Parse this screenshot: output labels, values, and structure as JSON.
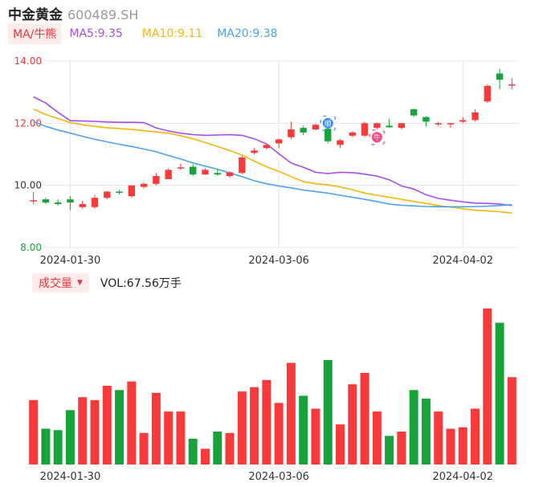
{
  "header": {
    "name": "中金黄金",
    "code": "600489.SH"
  },
  "ma_legend": {
    "type_label": "MA/牛熊",
    "items": [
      {
        "label": "MA5:9.35",
        "color": "#a64df2"
      },
      {
        "label": "MA10:9.11",
        "color": "#f5b50f"
      },
      {
        "label": "MA20:9.38",
        "color": "#4da3ef"
      }
    ]
  },
  "volume_legend": {
    "tab_label": "成交量",
    "caret": "▼",
    "value_text": "VOL:67.56万手"
  },
  "colors": {
    "up": "#f93a3a",
    "down": "#16a33a",
    "grid": "#e4e4e4",
    "axis_text": "#333333"
  },
  "markers": [
    {
      "label": "顺",
      "index": 24,
      "price": 12.0,
      "color": "#2f8cf5"
    },
    {
      "label": "牛",
      "index": 28,
      "price": 11.55,
      "color": "#f5487b"
    }
  ],
  "chart_data": [
    {
      "type": "candlestick",
      "y_ticks": [
        "14.00",
        "12.00",
        "10.00",
        "8.00"
      ],
      "ylim": [
        8.0,
        14.0
      ],
      "x_tick_labels": [
        {
          "label": "2024-01-30",
          "index": 3
        },
        {
          "label": "2024-03-06",
          "index": 20
        },
        {
          "label": "2024-04-02",
          "index": 35
        }
      ],
      "candles": [
        {
          "o": 9.5,
          "h": 9.78,
          "l": 9.4,
          "c": 9.52
        },
        {
          "o": 9.55,
          "h": 9.6,
          "l": 9.4,
          "c": 9.45
        },
        {
          "o": 9.45,
          "h": 9.55,
          "l": 9.35,
          "c": 9.4
        },
        {
          "o": 9.55,
          "h": 9.65,
          "l": 9.2,
          "c": 9.45
        },
        {
          "o": 9.3,
          "h": 9.5,
          "l": 9.25,
          "c": 9.4
        },
        {
          "o": 9.3,
          "h": 9.7,
          "l": 9.25,
          "c": 9.6
        },
        {
          "o": 9.6,
          "h": 9.82,
          "l": 9.55,
          "c": 9.8
        },
        {
          "o": 9.8,
          "h": 9.85,
          "l": 9.7,
          "c": 9.76
        },
        {
          "o": 9.65,
          "h": 10.0,
          "l": 9.6,
          "c": 10.0
        },
        {
          "o": 9.95,
          "h": 10.1,
          "l": 9.9,
          "c": 10.05
        },
        {
          "o": 10.05,
          "h": 10.4,
          "l": 10.0,
          "c": 10.3
        },
        {
          "o": 10.2,
          "h": 10.55,
          "l": 10.2,
          "c": 10.5
        },
        {
          "o": 10.55,
          "h": 10.7,
          "l": 10.5,
          "c": 10.58
        },
        {
          "o": 10.6,
          "h": 10.68,
          "l": 10.3,
          "c": 10.35
        },
        {
          "o": 10.35,
          "h": 10.55,
          "l": 10.35,
          "c": 10.5
        },
        {
          "o": 10.4,
          "h": 10.52,
          "l": 10.3,
          "c": 10.35
        },
        {
          "o": 10.3,
          "h": 10.45,
          "l": 10.25,
          "c": 10.42
        },
        {
          "o": 10.4,
          "h": 10.95,
          "l": 10.35,
          "c": 10.9
        },
        {
          "o": 11.05,
          "h": 11.2,
          "l": 11.0,
          "c": 11.12
        },
        {
          "o": 11.2,
          "h": 11.35,
          "l": 11.15,
          "c": 11.3
        },
        {
          "o": 11.35,
          "h": 11.5,
          "l": 11.2,
          "c": 11.48
        },
        {
          "o": 11.55,
          "h": 12.05,
          "l": 11.5,
          "c": 11.8
        },
        {
          "o": 11.85,
          "h": 11.92,
          "l": 11.62,
          "c": 11.7
        },
        {
          "o": 11.8,
          "h": 11.98,
          "l": 11.78,
          "c": 11.95
        },
        {
          "o": 11.82,
          "h": 11.9,
          "l": 11.35,
          "c": 11.42
        },
        {
          "o": 11.3,
          "h": 11.5,
          "l": 11.2,
          "c": 11.45
        },
        {
          "o": 11.6,
          "h": 11.75,
          "l": 11.55,
          "c": 11.7
        },
        {
          "o": 11.6,
          "h": 12.05,
          "l": 11.55,
          "c": 12.0
        },
        {
          "o": 11.85,
          "h": 12.02,
          "l": 11.8,
          "c": 12.0
        },
        {
          "o": 11.92,
          "h": 12.15,
          "l": 11.85,
          "c": 11.87
        },
        {
          "o": 11.85,
          "h": 12.0,
          "l": 11.8,
          "c": 12.0
        },
        {
          "o": 12.45,
          "h": 12.48,
          "l": 12.2,
          "c": 12.25
        },
        {
          "o": 12.2,
          "h": 12.22,
          "l": 11.9,
          "c": 12.05
        },
        {
          "o": 11.98,
          "h": 12.05,
          "l": 11.9,
          "c": 12.0
        },
        {
          "o": 11.98,
          "h": 12.02,
          "l": 11.85,
          "c": 12.0
        },
        {
          "o": 12.05,
          "h": 12.2,
          "l": 12.0,
          "c": 12.1
        },
        {
          "o": 12.1,
          "h": 12.45,
          "l": 12.05,
          "c": 12.35
        },
        {
          "o": 12.7,
          "h": 13.25,
          "l": 12.65,
          "c": 13.2
        },
        {
          "o": 13.6,
          "h": 13.75,
          "l": 13.1,
          "c": 13.4
        },
        {
          "o": 13.22,
          "h": 13.45,
          "l": 13.1,
          "c": 13.25
        }
      ],
      "ma_series": [
        {
          "name": "MA5",
          "color": "#a64df2",
          "values": [
            12.85,
            12.65,
            12.35,
            12.08,
            12.07,
            12.06,
            12.04,
            12.03,
            12.03,
            12.02,
            11.85,
            11.75,
            11.68,
            11.63,
            11.61,
            11.62,
            11.63,
            11.61,
            11.5,
            11.33,
            11.02,
            10.72,
            10.58,
            10.42,
            10.38,
            10.42,
            10.41,
            10.36,
            10.3,
            10.18,
            9.98,
            9.88,
            9.7,
            9.58,
            9.52,
            9.47,
            9.43,
            9.42,
            9.4,
            9.35
          ]
        },
        {
          "name": "MA10",
          "color": "#f5b50f",
          "values": [
            12.45,
            12.28,
            12.15,
            12.02,
            11.95,
            11.9,
            11.85,
            11.83,
            11.8,
            11.76,
            11.72,
            11.68,
            11.6,
            11.5,
            11.38,
            11.25,
            11.12,
            10.98,
            10.78,
            10.6,
            10.45,
            10.28,
            10.12,
            10.05,
            10.02,
            9.95,
            9.86,
            9.75,
            9.68,
            9.62,
            9.55,
            9.48,
            9.42,
            9.35,
            9.3,
            9.25,
            9.2,
            9.18,
            9.15,
            9.11
          ]
        },
        {
          "name": "MA20",
          "color": "#4da3ef",
          "values": [
            12.05,
            11.9,
            11.78,
            11.68,
            11.58,
            11.48,
            11.4,
            11.32,
            11.25,
            11.17,
            11.08,
            10.96,
            10.85,
            10.72,
            10.62,
            10.52,
            10.4,
            10.28,
            10.15,
            10.05,
            9.98,
            9.92,
            9.85,
            9.8,
            9.75,
            9.68,
            9.62,
            9.55,
            9.48,
            9.4,
            9.36,
            9.34,
            9.32,
            9.31,
            9.31,
            9.31,
            9.32,
            9.33,
            9.35,
            9.38
          ]
        }
      ]
    },
    {
      "type": "bar",
      "title": "成交量",
      "x_tick_labels": [
        {
          "label": "2024-01-30",
          "index": 3
        },
        {
          "label": "2024-03-06",
          "index": 20
        },
        {
          "label": "2024-04-02",
          "index": 35
        }
      ],
      "ylim": [
        0,
        110
      ],
      "values": [
        45,
        25,
        24,
        38,
        47,
        45,
        55,
        52,
        58,
        22,
        50,
        37,
        37,
        18,
        11,
        23,
        22,
        51,
        54,
        59,
        43,
        71,
        48,
        39,
        73,
        28,
        56,
        64,
        37,
        20,
        23,
        52,
        46,
        37,
        25,
        26,
        39,
        109,
        99,
        61
      ],
      "colors_by_candle": true
    }
  ]
}
